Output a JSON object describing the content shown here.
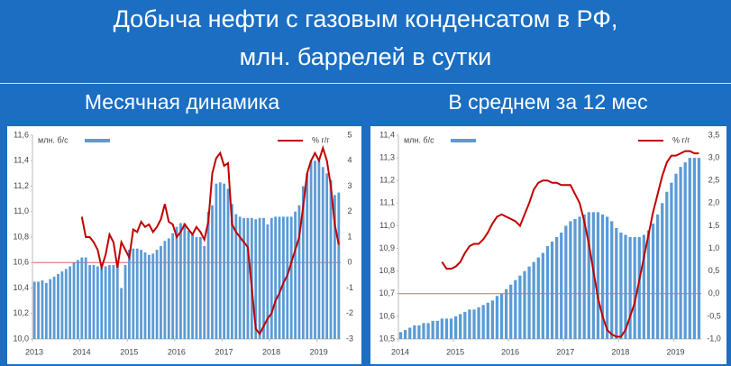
{
  "header": {
    "title": [
      "Добыча нефти с газовым конденсатом в РФ,",
      "млн. баррелей в сутки"
    ]
  },
  "chart_data": [
    {
      "type": "combo",
      "title": "Месячная динамика",
      "categories": [
        "2013",
        null,
        null,
        null,
        null,
        null,
        null,
        null,
        null,
        null,
        null,
        null,
        "2014",
        null,
        null,
        null,
        null,
        null,
        null,
        null,
        null,
        null,
        null,
        null,
        "2015",
        null,
        null,
        null,
        null,
        null,
        null,
        null,
        null,
        null,
        null,
        null,
        "2016",
        null,
        null,
        null,
        null,
        null,
        null,
        null,
        null,
        null,
        null,
        null,
        "2017",
        null,
        null,
        null,
        null,
        null,
        null,
        null,
        null,
        null,
        null,
        null,
        "2018",
        null,
        null,
        null,
        null,
        null,
        null,
        null,
        null,
        null,
        null,
        null,
        "2019",
        null,
        null,
        null,
        null,
        null
      ],
      "series": [
        {
          "name": "млн. б/с",
          "type": "bar",
          "color": "#5b9bd5",
          "values": [
            10.45,
            10.45,
            10.46,
            10.44,
            10.47,
            10.49,
            10.51,
            10.53,
            10.55,
            10.57,
            10.6,
            10.62,
            10.64,
            10.64,
            10.58,
            10.58,
            10.57,
            10.56,
            10.57,
            10.58,
            10.58,
            10.6,
            10.4,
            10.58,
            10.7,
            10.71,
            10.71,
            10.7,
            10.68,
            10.66,
            10.67,
            10.7,
            10.73,
            10.77,
            10.79,
            10.83,
            10.88,
            10.91,
            10.91,
            10.85,
            10.82,
            10.8,
            10.8,
            10.73,
            11.0,
            11.05,
            11.22,
            11.23,
            11.22,
            11.18,
            11.06,
            10.98,
            10.96,
            10.95,
            10.95,
            10.95,
            10.94,
            10.95,
            10.95,
            10.9,
            10.95,
            10.96,
            10.96,
            10.96,
            10.96,
            10.96,
            11.0,
            11.05,
            11.2,
            11.3,
            11.4,
            11.4,
            11.4,
            11.35,
            11.3,
            11.25,
            11.13,
            11.15
          ]
        },
        {
          "name": "% г/г",
          "type": "line",
          "axis": "y2",
          "color": "#c00000",
          "values": [
            null,
            null,
            null,
            null,
            null,
            null,
            null,
            null,
            null,
            null,
            null,
            null,
            1.8,
            1.0,
            1.0,
            0.8,
            0.5,
            -0.2,
            0.3,
            1.1,
            0.8,
            -0.2,
            0.8,
            0.5,
            0.2,
            1.3,
            1.2,
            1.6,
            1.4,
            1.5,
            1.2,
            1.4,
            1.7,
            2.3,
            1.6,
            1.5,
            1.0,
            1.2,
            1.5,
            1.3,
            1.1,
            1.4,
            1.2,
            0.9,
            1.6,
            3.5,
            4.1,
            4.3,
            3.8,
            3.9,
            1.5,
            1.2,
            1.0,
            0.8,
            0.6,
            -1.0,
            -2.6,
            -2.8,
            -2.5,
            -2.2,
            -2.0,
            -1.5,
            -1.2,
            -0.8,
            -0.5,
            0.0,
            0.5,
            1.0,
            2.2,
            3.5,
            4.0,
            4.3,
            4.0,
            4.5,
            4.0,
            3.0,
            1.5,
            0.7
          ]
        }
      ],
      "ylim": [
        10.0,
        11.6
      ],
      "yticks": [
        {
          "value": 10.0,
          "label": "10,0"
        },
        {
          "value": 10.2,
          "label": "10,2"
        },
        {
          "value": 10.4,
          "label": "10,4"
        },
        {
          "value": 10.6,
          "label": "10,6"
        },
        {
          "value": 10.8,
          "label": "10,8"
        },
        {
          "value": 11.0,
          "label": "11,0"
        },
        {
          "value": 11.2,
          "label": "11,2"
        },
        {
          "value": 11.4,
          "label": "11,4"
        },
        {
          "value": 11.6,
          "label": "11,6"
        }
      ],
      "y2lim": [
        -3,
        5
      ],
      "y2ticks": [
        -3,
        -2,
        -1,
        0,
        1,
        2,
        3,
        4,
        5
      ],
      "grid": false
    },
    {
      "type": "combo",
      "title": "В среднем за 12 мес",
      "categories": [
        "2014",
        null,
        null,
        null,
        null,
        null,
        null,
        null,
        null,
        null,
        null,
        null,
        "2015",
        null,
        null,
        null,
        null,
        null,
        null,
        null,
        null,
        null,
        null,
        null,
        "2016",
        null,
        null,
        null,
        null,
        null,
        null,
        null,
        null,
        null,
        null,
        null,
        "2017",
        null,
        null,
        null,
        null,
        null,
        null,
        null,
        null,
        null,
        null,
        null,
        "2018",
        null,
        null,
        null,
        null,
        null,
        null,
        null,
        null,
        null,
        null,
        null,
        "2019",
        null,
        null,
        null,
        null,
        null
      ],
      "series": [
        {
          "name": "млн. б/с",
          "type": "bar",
          "color": "#5b9bd5",
          "values": [
            10.53,
            10.54,
            10.55,
            10.56,
            10.56,
            10.57,
            10.57,
            10.58,
            10.58,
            10.59,
            10.59,
            10.59,
            10.6,
            10.61,
            10.62,
            10.63,
            10.63,
            10.64,
            10.65,
            10.66,
            10.67,
            10.69,
            10.7,
            10.72,
            10.74,
            10.76,
            10.78,
            10.8,
            10.82,
            10.84,
            10.86,
            10.88,
            10.91,
            10.93,
            10.95,
            10.97,
            11.0,
            11.02,
            11.03,
            11.04,
            11.05,
            11.06,
            11.06,
            11.06,
            11.05,
            11.04,
            11.02,
            10.99,
            10.97,
            10.96,
            10.95,
            10.95,
            10.95,
            10.96,
            10.98,
            11.01,
            11.05,
            11.1,
            11.15,
            11.19,
            11.23,
            11.26,
            11.28,
            11.3,
            11.3,
            11.3
          ]
        },
        {
          "name": "% г/г",
          "type": "line",
          "axis": "y2",
          "color": "#c00000",
          "values": [
            null,
            null,
            null,
            null,
            null,
            null,
            null,
            null,
            null,
            0.7,
            0.55,
            0.55,
            0.6,
            0.7,
            0.9,
            1.05,
            1.1,
            1.1,
            1.2,
            1.35,
            1.55,
            1.7,
            1.75,
            1.7,
            1.65,
            1.6,
            1.5,
            1.75,
            2.0,
            2.3,
            2.45,
            2.5,
            2.5,
            2.45,
            2.45,
            2.4,
            2.4,
            2.4,
            2.2,
            2.0,
            1.6,
            1.1,
            0.5,
            -0.1,
            -0.5,
            -0.8,
            -0.9,
            -0.95,
            -0.95,
            -0.8,
            -0.5,
            -0.2,
            0.3,
            0.8,
            1.3,
            1.8,
            2.2,
            2.6,
            2.9,
            3.05,
            3.05,
            3.1,
            3.15,
            3.15,
            3.1,
            3.1
          ]
        }
      ],
      "ylim": [
        10.5,
        11.4
      ],
      "yticks": [
        {
          "value": 10.5,
          "label": "10,5"
        },
        {
          "value": 10.6,
          "label": "10,6"
        },
        {
          "value": 10.7,
          "label": "10,7"
        },
        {
          "value": 10.8,
          "label": "10,8"
        },
        {
          "value": 10.9,
          "label": "10,9"
        },
        {
          "value": 11.0,
          "label": "11,0"
        },
        {
          "value": 11.1,
          "label": "11,1"
        },
        {
          "value": 11.2,
          "label": "11,2"
        },
        {
          "value": 11.3,
          "label": "11,3"
        },
        {
          "value": 11.4,
          "label": "11,4"
        }
      ],
      "y2lim": [
        -1.0,
        3.5
      ],
      "y2ticks": [
        {
          "value": -1.0,
          "label": "-1,0"
        },
        {
          "value": -0.5,
          "label": "-0,5"
        },
        {
          "value": 0.0,
          "label": "0,0"
        },
        {
          "value": 0.5,
          "label": "0,5"
        },
        {
          "value": 1.0,
          "label": "1,0"
        },
        {
          "value": 1.5,
          "label": "1,5"
        },
        {
          "value": 2.0,
          "label": "2,0"
        },
        {
          "value": 2.5,
          "label": "2,5"
        },
        {
          "value": 3.0,
          "label": "3,0"
        },
        {
          "value": 3.5,
          "label": "3,5"
        }
      ],
      "grid": false
    }
  ]
}
